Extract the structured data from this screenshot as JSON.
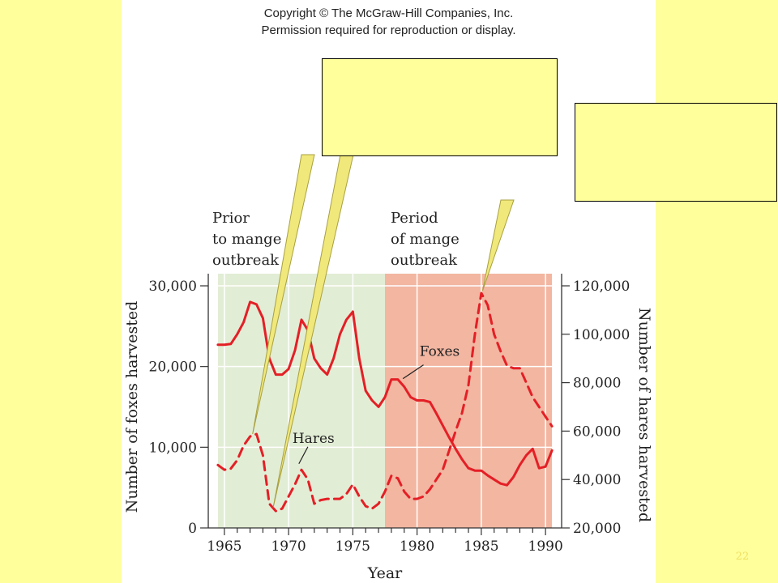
{
  "copyright": {
    "line1": "Copyright © The McGraw-Hill Companies, Inc.",
    "line2": "Permission required for reproduction or display."
  },
  "callouts": [
    {
      "name": "callout-left",
      "text": ""
    },
    {
      "name": "callout-right",
      "text": ""
    }
  ],
  "slide_number": "22",
  "colors": {
    "page_background": "#FFFF9C",
    "prior_period_fill": "#E2EDD5",
    "mange_period_fill": "#F2B6A1",
    "series_line": "#E41F26",
    "callout_fill": "#FFFF9C",
    "pointer_fill": "#F0E87A",
    "slide_number": "#F0E060"
  },
  "chart_data": {
    "type": "line",
    "title": "",
    "xlabel": "Year",
    "ylabel": "Number of foxes harvested",
    "ylabel_right": "Number of hares harvested",
    "xlim": [
      1964,
      1991
    ],
    "ylim": [
      0,
      30000
    ],
    "ylim_right": [
      20000,
      120000
    ],
    "x_ticks": [
      1965,
      1970,
      1975,
      1980,
      1985,
      1990
    ],
    "x_tick_labels": [
      "1965",
      "1970",
      "1975",
      "1980",
      "1985",
      "1990"
    ],
    "y_ticks": [
      0,
      10000,
      20000,
      30000
    ],
    "y_tick_labels": [
      "0",
      "10,000",
      "20,000",
      "30,000"
    ],
    "y_right_ticks": [
      20000,
      40000,
      60000,
      80000,
      100000,
      120000
    ],
    "y_right_tick_labels": [
      "20,000",
      "40,000",
      "60,000",
      "80,000",
      "100,000",
      "120,000"
    ],
    "grid": true,
    "legend": "none",
    "periods": [
      {
        "label_lines": [
          "Prior",
          "to mange",
          "outbreak"
        ],
        "x_range": [
          1964.5,
          1977.5
        ],
        "color": "#E2EDD5"
      },
      {
        "label_lines": [
          "Period",
          "of mange",
          "outbreak"
        ],
        "x_range": [
          1977.5,
          1990.5
        ],
        "color": "#F2B6A1"
      }
    ],
    "series": [
      {
        "name": "Foxes",
        "axis": "left",
        "style": "solid",
        "color": "#E41F26",
        "x": [
          1964.5,
          1965,
          1965.5,
          1966,
          1966.5,
          1967,
          1967.5,
          1968,
          1968.5,
          1969,
          1969.5,
          1970,
          1970.5,
          1971,
          1971.5,
          1972,
          1972.5,
          1973,
          1973.5,
          1974,
          1974.5,
          1975,
          1975.5,
          1976,
          1976.5,
          1977,
          1977.5,
          1978,
          1978.5,
          1979,
          1979.5,
          1980,
          1980.5,
          1981,
          1981.5,
          1982,
          1982.5,
          1983,
          1983.5,
          1984,
          1984.5,
          1985,
          1985.5,
          1986,
          1986.5,
          1987,
          1987.5,
          1988,
          1988.5,
          1989,
          1989.5,
          1990,
          1990.5
        ],
        "values": [
          22700,
          22700,
          22800,
          24000,
          25500,
          28000,
          27700,
          26000,
          21000,
          19000,
          19000,
          19700,
          22000,
          25800,
          24500,
          21000,
          19800,
          19000,
          21000,
          24000,
          25800,
          26800,
          21000,
          17000,
          15800,
          15000,
          16200,
          18400,
          18400,
          17500,
          16200,
          15800,
          15800,
          15600,
          14200,
          12700,
          11200,
          9800,
          8500,
          7400,
          7100,
          7100,
          6500,
          6000,
          5500,
          5300,
          6300,
          7800,
          9000,
          9800,
          7400,
          7600,
          9600
        ]
      },
      {
        "name": "Hares",
        "axis": "right",
        "style": "dashed",
        "color": "#E41F26",
        "x": [
          1964.5,
          1965,
          1965.5,
          1966,
          1966.5,
          1967,
          1967.5,
          1968,
          1968.5,
          1969,
          1969.5,
          1970,
          1970.5,
          1971,
          1971.5,
          1972,
          1972.5,
          1973,
          1973.5,
          1974,
          1974.5,
          1975,
          1975.5,
          1976,
          1976.5,
          1977,
          1977.5,
          1978,
          1978.5,
          1979,
          1979.5,
          1980,
          1980.5,
          1981,
          1981.5,
          1982,
          1982.5,
          1983,
          1983.5,
          1984,
          1984.5,
          1985,
          1985.5,
          1986,
          1986.5,
          1987,
          1987.5,
          1988,
          1988.5,
          1989,
          1989.5,
          1990,
          1990.5
        ],
        "values": [
          46000,
          44000,
          44500,
          48000,
          54000,
          57800,
          58800,
          50000,
          30000,
          27000,
          28000,
          33000,
          38000,
          44000,
          40000,
          30000,
          31500,
          32000,
          32000,
          32000,
          34000,
          38000,
          33000,
          29000,
          28000,
          30000,
          35000,
          41500,
          40500,
          35000,
          32000,
          32000,
          33000,
          36000,
          40000,
          44000,
          52000,
          60000,
          67500,
          79000,
          100000,
          117000,
          112000,
          100000,
          93000,
          87000,
          86000,
          86000,
          80000,
          74000,
          70000,
          66000,
          62000
        ]
      }
    ],
    "annotations": [
      {
        "text": "Foxes",
        "series": "Foxes",
        "x": 1978.5,
        "y": 18400
      },
      {
        "text": "Hares",
        "series": "Hares",
        "x": 1971.5,
        "y": 40000
      }
    ]
  }
}
